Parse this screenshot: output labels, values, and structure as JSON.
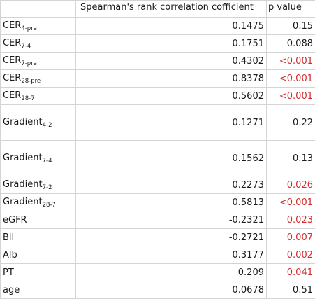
{
  "table": {
    "header": {
      "label": "",
      "rho": "Spearman's rank correlation cofficient",
      "p": "p value"
    },
    "rows": [
      {
        "label": "CER",
        "sub": "4-pre",
        "rho": "0.1475",
        "p": "0.15",
        "sig": false
      },
      {
        "label": "CER",
        "sub": "7-4",
        "rho": "0.1751",
        "p": "0.088",
        "sig": false
      },
      {
        "label": "CER",
        "sub": "7-pre",
        "rho": "0.4302",
        "p": "<0.001",
        "sig": true
      },
      {
        "label": "CER",
        "sub": "28-pre",
        "rho": "0.8378",
        "p": "<0.001",
        "sig": true
      },
      {
        "label": "CER",
        "sub": "28-7",
        "rho": "0.5602",
        "p": "<0.001",
        "sig": true
      },
      {
        "label": "Gradient",
        "sub": "4-2",
        "rho": "0.1271",
        "p": "0.22",
        "sig": false
      },
      {
        "label": "Gradient",
        "sub": "7-4",
        "rho": "0.1562",
        "p": "0.13",
        "sig": false
      },
      {
        "label": "Gradient",
        "sub": "7-2",
        "rho": "0.2273",
        "p": "0.026",
        "sig": true
      },
      {
        "label": "Gradient",
        "sub": "28-7",
        "rho": "0.5813",
        "p": "<0.001",
        "sig": true
      },
      {
        "label": "eGFR",
        "sub": "",
        "rho": "-0.2321",
        "p": "0.023",
        "sig": true
      },
      {
        "label": "Bil",
        "sub": "",
        "rho": "-0.2721",
        "p": "0.007",
        "sig": true
      },
      {
        "label": "Alb",
        "sub": "",
        "rho": "0.3177",
        "p": "0.002",
        "sig": true
      },
      {
        "label": "PT",
        "sub": "",
        "rho": "0.209",
        "p": "0.041",
        "sig": true
      },
      {
        "label": "age",
        "sub": "",
        "rho": "0.0678",
        "p": "0.51",
        "sig": false
      }
    ]
  },
  "colors": {
    "significant": "#d42c2c",
    "text": "#1a1a1a",
    "grid": "#d4d4d4"
  }
}
